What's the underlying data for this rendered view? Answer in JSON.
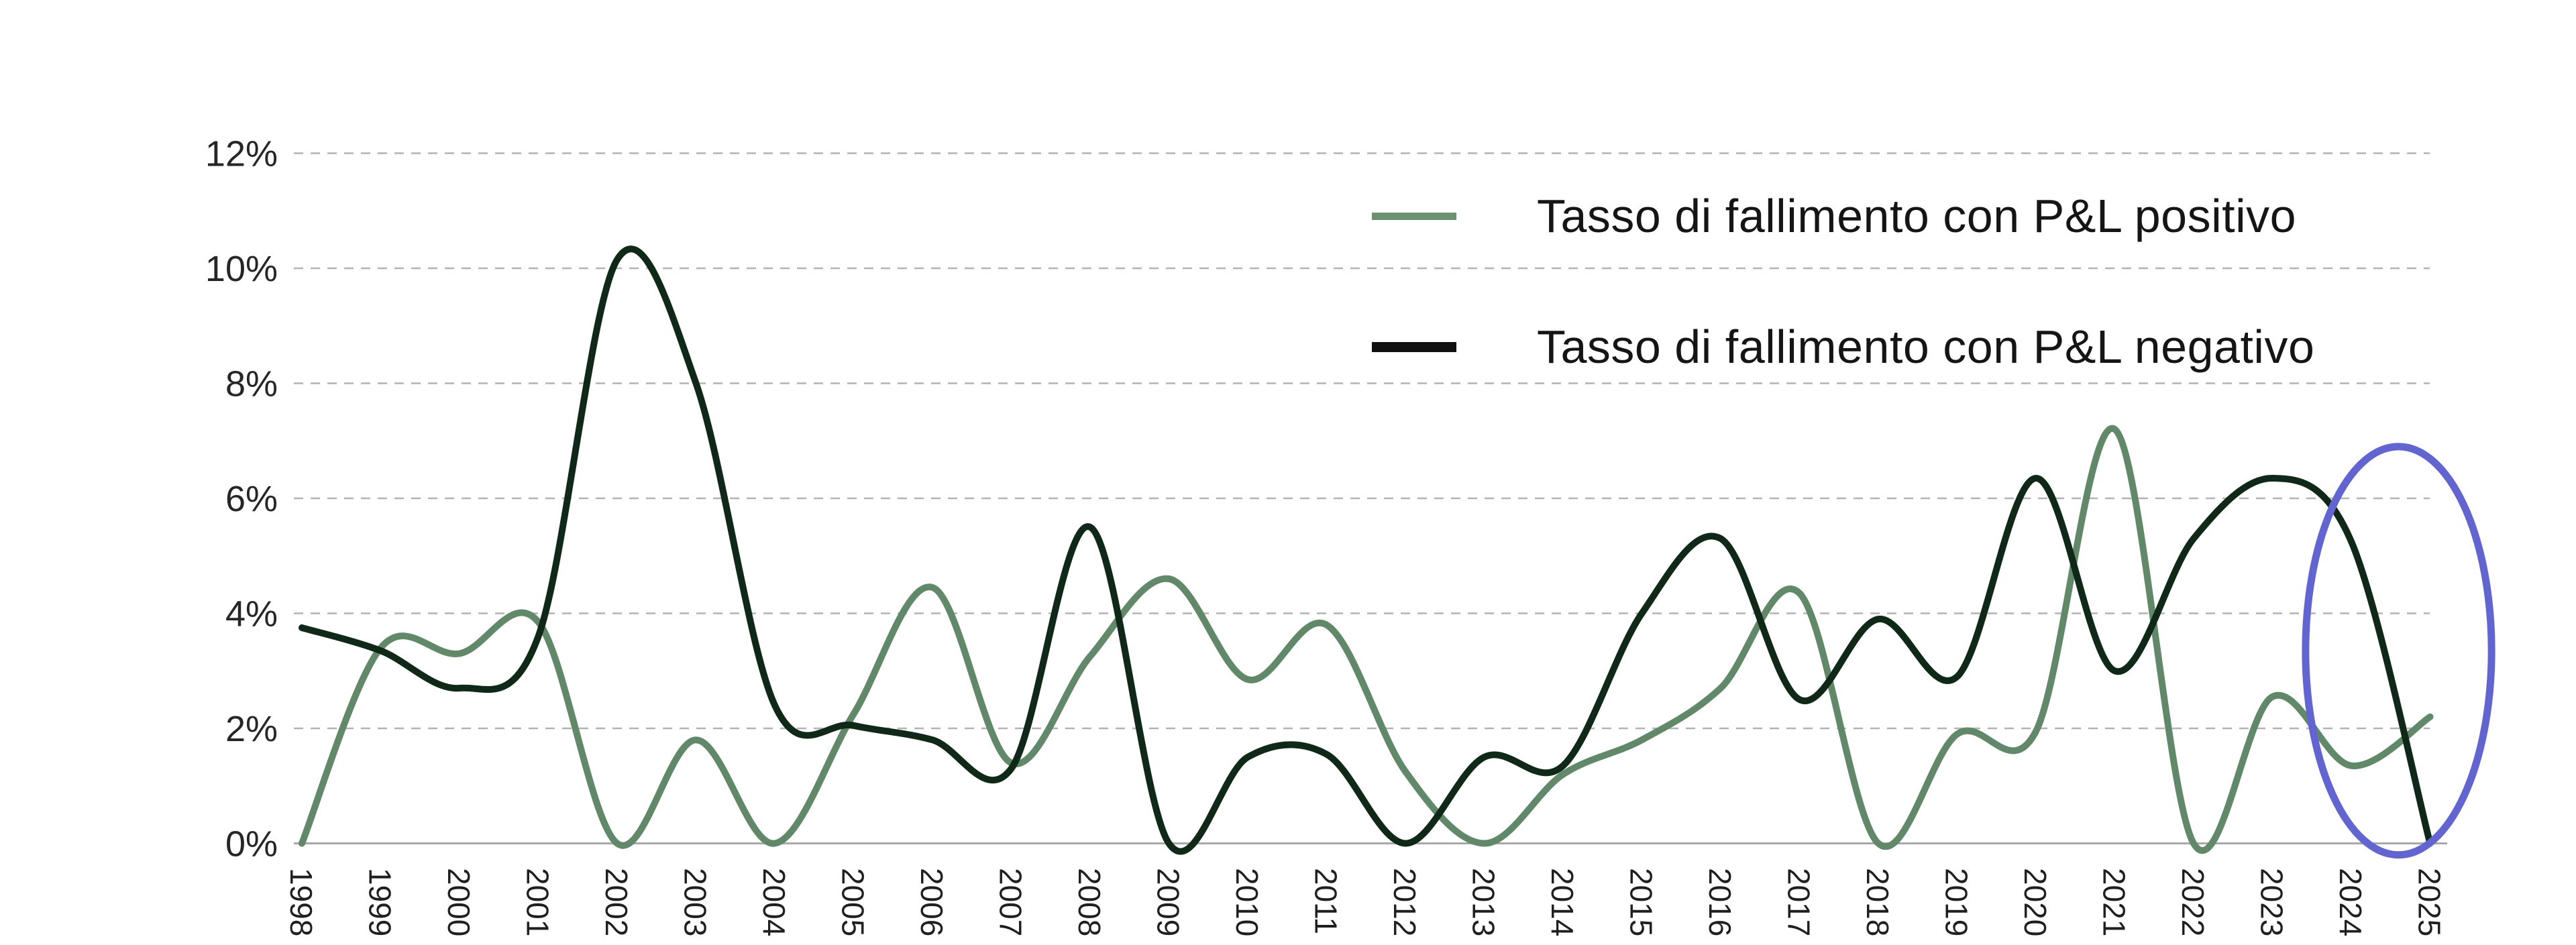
{
  "chart_data": {
    "type": "line",
    "title": "",
    "xlabel": "",
    "ylabel": "",
    "x": [
      1998,
      1999,
      2000,
      2001,
      2002,
      2003,
      2004,
      2005,
      2006,
      2007,
      2008,
      2009,
      2010,
      2011,
      2012,
      2013,
      2014,
      2015,
      2016,
      2017,
      2018,
      2019,
      2020,
      2021,
      2022,
      2023,
      2024,
      2025
    ],
    "series": [
      {
        "name": "Tasso di fallimento con P&L positivo",
        "color": "#62886a",
        "values": [
          0,
          3.4,
          3.3,
          3.85,
          0,
          1.8,
          0,
          2.25,
          4.45,
          1.4,
          3.25,
          4.6,
          2.85,
          3.8,
          1.25,
          0,
          1.2,
          1.8,
          2.7,
          4.35,
          0,
          1.9,
          1.95,
          7.2,
          0,
          2.55,
          1.35,
          2.2
        ]
      },
      {
        "name": "Tasso di fallimento con P&L negativo",
        "color": "#0f2818",
        "values": [
          3.75,
          3.35,
          2.7,
          3.6,
          10.15,
          8.0,
          2.4,
          2.05,
          1.8,
          1.3,
          5.5,
          0,
          1.5,
          1.55,
          0,
          1.5,
          1.35,
          4.0,
          5.3,
          2.5,
          3.9,
          2.9,
          6.35,
          3.0,
          5.3,
          6.35,
          5.25,
          0
        ]
      }
    ],
    "ylim": [
      0,
      12
    ],
    "y_ticks": [
      0,
      2,
      4,
      6,
      8,
      10,
      12
    ],
    "y_tick_suffix": "%",
    "grid": "horizontal-dashed",
    "line_smoothing": "catmull-rom",
    "legend_position": "top-right",
    "annotation": {
      "shape": "ellipse",
      "meaning": "highlight of 2024-2025 values",
      "color": "#6265cf",
      "center_year": 2024.6,
      "center_value": 3.35,
      "radius_years": 1.18,
      "radius_value": 3.55
    }
  },
  "legend": {
    "items": [
      {
        "label": "Tasso di fallimento con P&L positivo",
        "swatch_color": "#6b9170"
      },
      {
        "label": "Tasso di fallimento con P&L negativo",
        "swatch_color": "#101010"
      }
    ]
  },
  "colors": {
    "background": "#ffffff",
    "gridline": "#b3b3b3",
    "baseline": "#a8a8a8",
    "tick_text": "#262626"
  }
}
